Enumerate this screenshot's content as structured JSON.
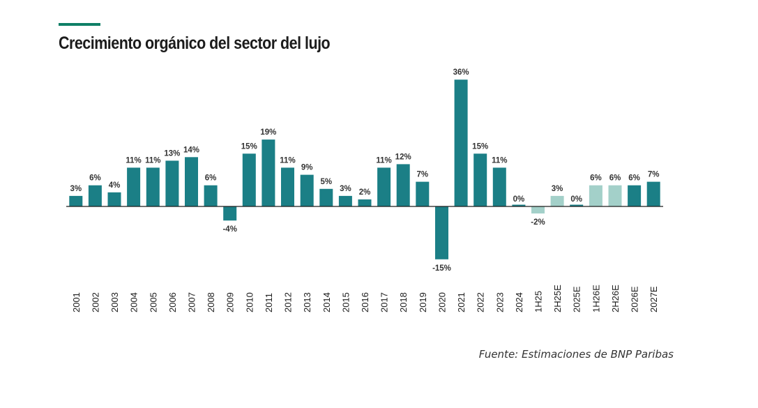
{
  "colors": {
    "accent": "#0f7f66",
    "bar_actual": "#1b7f86",
    "bar_estimate_light": "#a3d0c9",
    "axis": "#1c1c1c",
    "text": "#1c1c1c"
  },
  "chart_data": {
    "type": "bar",
    "title": "Crecimiento orgánico del sector del lujo",
    "xlabel": "",
    "ylabel": "",
    "ylim": [
      -15,
      36
    ],
    "grid": false,
    "categories": [
      "2001",
      "2002",
      "2003",
      "2004",
      "2005",
      "2006",
      "2007",
      "2008",
      "2009",
      "2010",
      "2011",
      "2012",
      "2013",
      "2014",
      "2015",
      "2016",
      "2017",
      "2018",
      "2019",
      "2020",
      "2021",
      "2022",
      "2023",
      "2024",
      "1H25",
      "2H25E",
      "2025E",
      "1H26E",
      "2H26E",
      "2026E",
      "2027E"
    ],
    "values": [
      3,
      6,
      4,
      11,
      11,
      13,
      14,
      6,
      -4,
      15,
      19,
      11,
      9,
      5,
      3,
      2,
      11,
      12,
      7,
      -15,
      36,
      15,
      11,
      0,
      -2,
      3,
      0,
      6,
      6,
      6,
      7
    ],
    "labels": [
      "3%",
      "6%",
      "4%",
      "11%",
      "11%",
      "13%",
      "14%",
      "6%",
      "-4%",
      "15%",
      "19%",
      "11%",
      "9%",
      "5%",
      "3%",
      "2%",
      "11%",
      "12%",
      "7%",
      "-15%",
      "36%",
      "15%",
      "11%",
      "0%",
      "-2%",
      "3%",
      "0%",
      "6%",
      "6%",
      "6%",
      "7%"
    ],
    "bar_style": [
      "dark",
      "dark",
      "dark",
      "dark",
      "dark",
      "dark",
      "dark",
      "dark",
      "dark",
      "dark",
      "dark",
      "dark",
      "dark",
      "dark",
      "dark",
      "dark",
      "dark",
      "dark",
      "dark",
      "dark",
      "dark",
      "dark",
      "dark",
      "dark",
      "light",
      "light",
      "dark",
      "light",
      "light",
      "dark",
      "dark"
    ]
  },
  "source": "Fuente: Estimaciones de BNP Paribas"
}
